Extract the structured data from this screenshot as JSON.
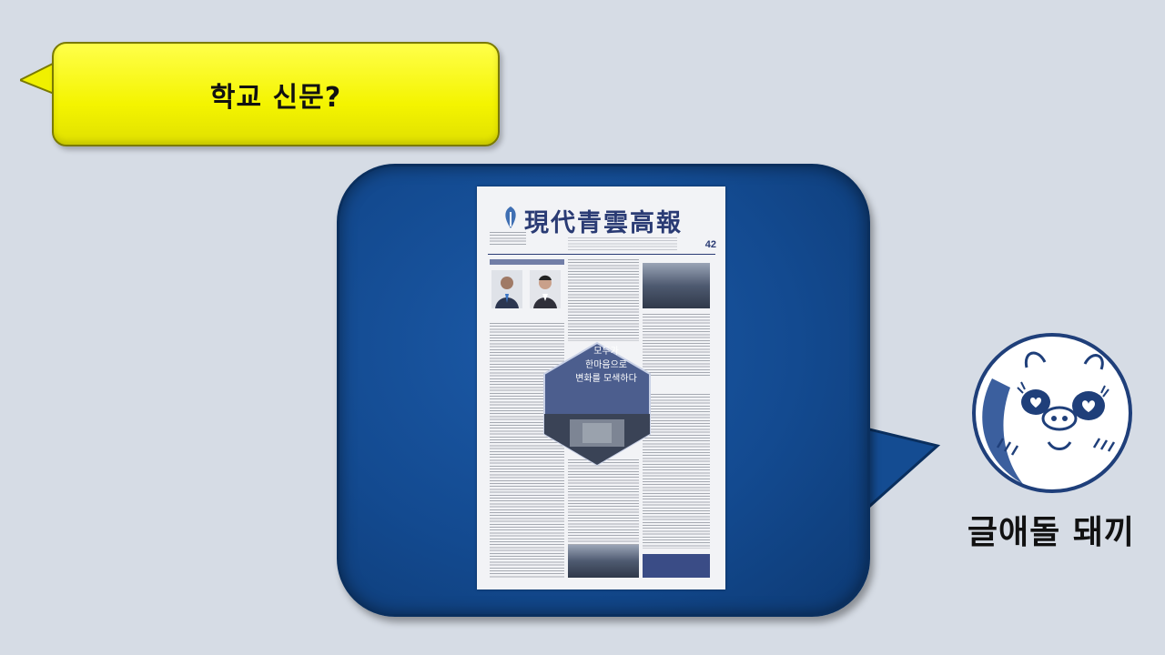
{
  "question_bubble": {
    "text": "학교 신문?"
  },
  "newspaper": {
    "title": "現代青雲高報",
    "issue": "42",
    "callout_lines": [
      "모두가",
      "한마음으로",
      "변화를 모색하다"
    ]
  },
  "character": {
    "name": "글애돌 돼끼"
  },
  "colors": {
    "background": "#d6dce5",
    "yellow_bubble": "#f4f400",
    "blue_bubble": "#134a90",
    "newspaper_ink": "#2a3b74"
  }
}
